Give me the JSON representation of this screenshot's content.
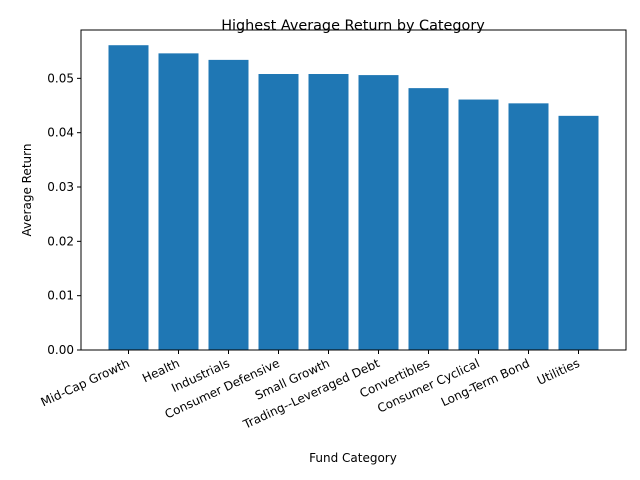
{
  "chart_data": {
    "type": "bar",
    "title": "Highest Average Return by Category",
    "xlabel": "Fund Category",
    "ylabel": "Average Return",
    "categories": [
      "Mid-Cap Growth",
      "Health",
      "Industrials",
      "Consumer Defensive",
      "Small Growth",
      "Trading--Leveraged Debt",
      "Convertibles",
      "Consumer Cyclical",
      "Long-Term Bond",
      "Utilities"
    ],
    "values": [
      0.0561,
      0.0546,
      0.0534,
      0.0508,
      0.0508,
      0.0506,
      0.0482,
      0.0461,
      0.0454,
      0.0431
    ],
    "ylim": [
      0,
      0.0589
    ],
    "yticks": [
      0.0,
      0.01,
      0.02,
      0.03,
      0.04,
      0.05
    ],
    "ytick_labels": [
      "0.00",
      "0.01",
      "0.02",
      "0.03",
      "0.04",
      "0.05"
    ],
    "bar_color": "#1f77b4",
    "grid": false,
    "legend": "none"
  }
}
